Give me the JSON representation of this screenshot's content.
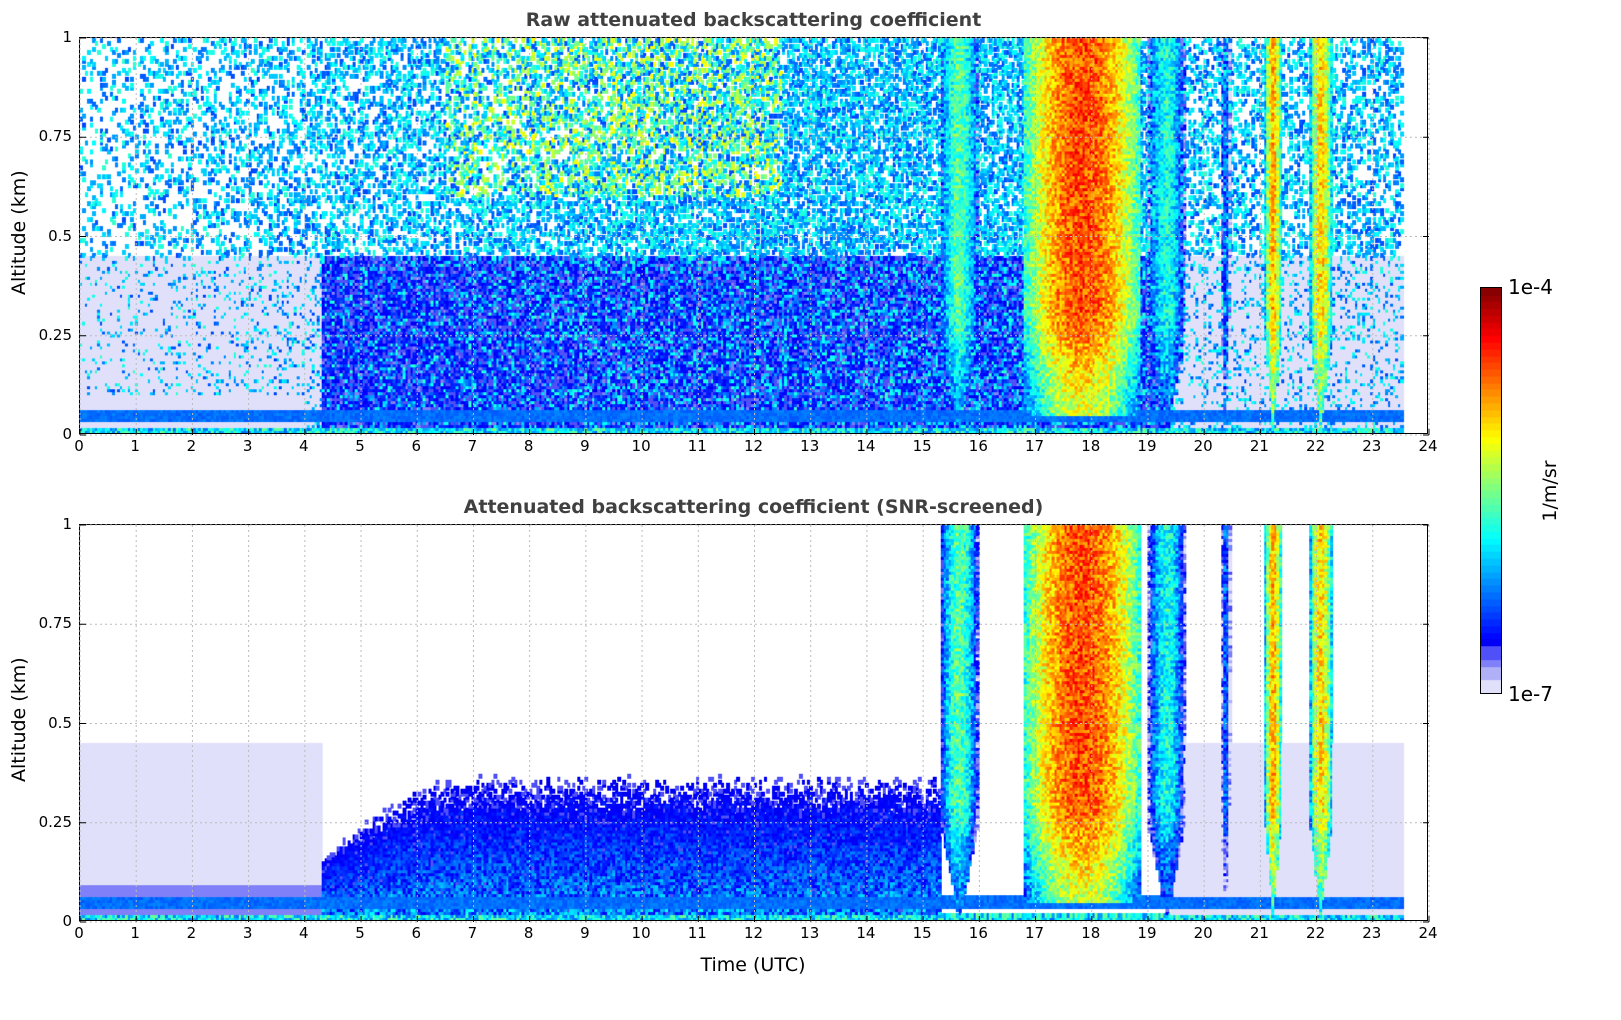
{
  "chart_data": [
    {
      "type": "heatmap",
      "title": "Raw attenuated backscattering coefficient",
      "xlabel": "",
      "ylabel": "Altitude (km)",
      "xlim": [
        0,
        24
      ],
      "ylim": [
        0,
        1
      ],
      "xticks": [
        "0",
        "1",
        "2",
        "3",
        "4",
        "5",
        "6",
        "7",
        "8",
        "9",
        "10",
        "11",
        "12",
        "13",
        "14",
        "15",
        "16",
        "17",
        "18",
        "19",
        "20",
        "21",
        "22",
        "23",
        "24"
      ],
      "yticks": [
        "0",
        "0.25",
        "0.5",
        "0.75",
        "1"
      ],
      "grid": true,
      "data_end_hour": 23.55,
      "boundary_layer_band_km": [
        0.03,
        0.06
      ],
      "cloud_events": [
        {
          "start": 15.3,
          "end": 16.0,
          "peak_log10": -5.3
        },
        {
          "start": 16.8,
          "end": 18.9,
          "peak_log10": -4.3
        },
        {
          "start": 19.0,
          "end": 19.7,
          "peak_log10": -5.5
        },
        {
          "start": 20.3,
          "end": 20.5,
          "peak_log10": -6.0
        },
        {
          "start": 21.1,
          "end": 21.4,
          "peak_log10": -4.6
        },
        {
          "start": 21.9,
          "end": 22.3,
          "peak_log10": -4.7
        }
      ]
    },
    {
      "type": "heatmap",
      "title": "Attenuated backscattering coefficient (SNR-screened)",
      "xlabel": "Time (UTC)",
      "ylabel": "Altitude (km)",
      "xlim": [
        0,
        24
      ],
      "ylim": [
        0,
        1
      ],
      "xticks": [
        "0",
        "1",
        "2",
        "3",
        "4",
        "5",
        "6",
        "7",
        "8",
        "9",
        "10",
        "11",
        "12",
        "13",
        "14",
        "15",
        "16",
        "17",
        "18",
        "19",
        "20",
        "21",
        "22",
        "23",
        "24"
      ],
      "yticks": [
        "0",
        "0.25",
        "0.5",
        "0.75",
        "1"
      ],
      "grid": true,
      "screened": true
    }
  ],
  "colorbar": {
    "label": "1/m/sr",
    "min_label": "1e-7",
    "max_label": "1e-4",
    "min_log10": -7,
    "max_log10": -4,
    "colormap": "jet"
  }
}
